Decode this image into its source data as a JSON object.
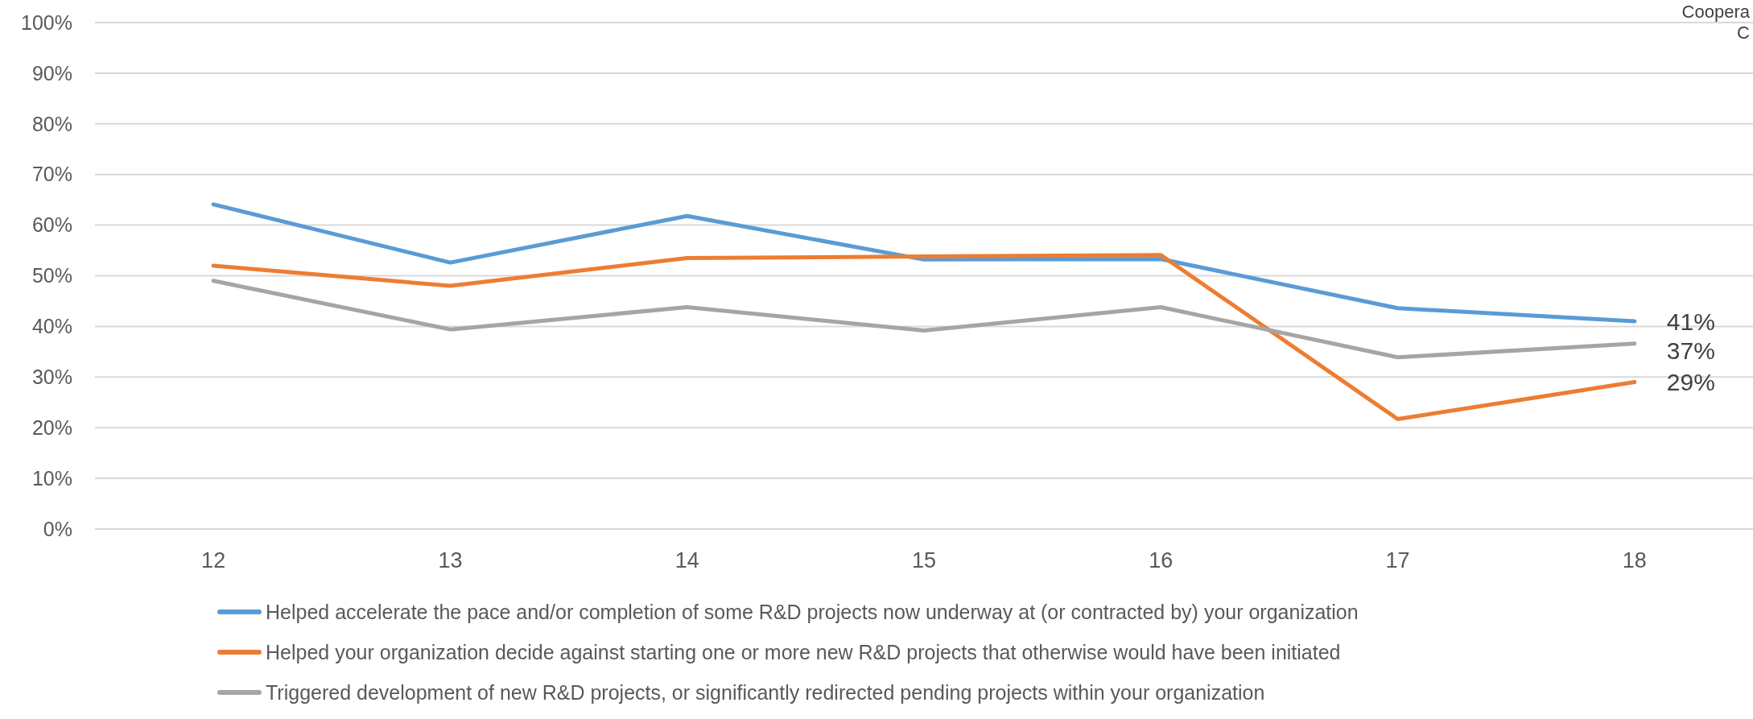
{
  "chart_data": {
    "type": "line",
    "categories": [
      "12",
      "13",
      "14",
      "15",
      "16",
      "17",
      "18"
    ],
    "series": [
      {
        "name": "Helped accelerate the pace and/or completion of some R&D projects now underway at (or contracted by) your organization",
        "color": "#5b9bd5",
        "values": [
          64.1,
          52.6,
          61.8,
          53.2,
          53.3,
          43.6,
          41
        ],
        "value_labels": [
          null,
          null,
          null,
          null,
          null,
          null,
          "41%"
        ]
      },
      {
        "name": "Helped your organization decide against starting one or more new R&D projects that otherwise would have been initiated",
        "color": "#ed7d31",
        "values": [
          52,
          48,
          53.5,
          53.8,
          54.1,
          21.7,
          29
        ],
        "value_labels": [
          null,
          null,
          null,
          null,
          null,
          null,
          "29%"
        ]
      },
      {
        "name": "Triggered development of new R&D projects, or significantly redirected pending projects within your organization",
        "color": "#a5a5a5",
        "values": [
          49,
          39.4,
          43.8,
          39.2,
          43.8,
          33.9,
          36.6
        ],
        "value_labels": [
          null,
          null,
          null,
          null,
          null,
          null,
          "37%"
        ]
      }
    ],
    "ylim": [
      0,
      100
    ],
    "yticks": [
      {
        "value": 0,
        "label": "0%"
      },
      {
        "value": 10,
        "label": "10%"
      },
      {
        "value": 20,
        "label": "20%"
      },
      {
        "value": 30,
        "label": "30%"
      },
      {
        "value": 40,
        "label": "40%"
      },
      {
        "value": 50,
        "label": "50%"
      },
      {
        "value": 60,
        "label": "60%"
      },
      {
        "value": 70,
        "label": "70%"
      },
      {
        "value": 80,
        "label": "80%"
      },
      {
        "value": 90,
        "label": "90%"
      },
      {
        "value": 100,
        "label": "100%"
      }
    ],
    "grid": "y",
    "legend": "bottom",
    "marker": "none",
    "line_style": "solid",
    "annotations": [
      "Coopera",
      "C"
    ]
  }
}
